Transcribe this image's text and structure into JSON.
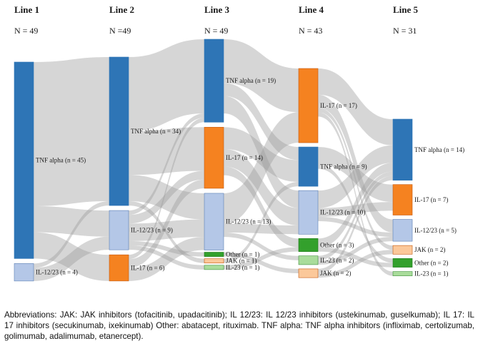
{
  "chart_data": {
    "type": "sankey",
    "columns": [
      {
        "label": "Line 1",
        "n_label": "N = 49",
        "total": 49
      },
      {
        "label": "Line 2",
        "n_label": "N =49",
        "total": 49
      },
      {
        "label": "Line 3",
        "n_label": "N = 49",
        "total": 49
      },
      {
        "label": "Line 4",
        "n_label": "N = 43",
        "total": 43
      },
      {
        "label": "Line 5",
        "n_label": "N = 31",
        "total": 31
      }
    ],
    "nodes": [
      {
        "id": "L1_TNF",
        "col": 0,
        "category": "TNF alpha",
        "value": 45,
        "label": "TNF alpha (n = 45)"
      },
      {
        "id": "L1_IL1223",
        "col": 0,
        "category": "IL-12/23",
        "value": 4,
        "label": "IL-12/23 (n = 4)"
      },
      {
        "id": "L2_TNF",
        "col": 1,
        "category": "TNF alpha",
        "value": 34,
        "label": "TNF alpha (n = 34)"
      },
      {
        "id": "L2_IL1223",
        "col": 1,
        "category": "IL-12/23",
        "value": 9,
        "label": "IL-12/23 (n = 9)"
      },
      {
        "id": "L2_IL17",
        "col": 1,
        "category": "IL-17",
        "value": 6,
        "label": "IL-17 (n = 6)"
      },
      {
        "id": "L3_TNF",
        "col": 2,
        "category": "TNF alpha",
        "value": 19,
        "label": "TNF alpha (n = 19)"
      },
      {
        "id": "L3_IL17",
        "col": 2,
        "category": "IL-17",
        "value": 14,
        "label": "IL-17 (n = 14)"
      },
      {
        "id": "L3_IL1223",
        "col": 2,
        "category": "IL-12/23",
        "value": 13,
        "label": "IL-12/23 (n = 13)"
      },
      {
        "id": "L3_Other",
        "col": 2,
        "category": "Other",
        "value": 1,
        "label": "Other (n = 1)"
      },
      {
        "id": "L3_JAK",
        "col": 2,
        "category": "JAK",
        "value": 1,
        "label": "JAK (n = 1)"
      },
      {
        "id": "L3_IL23",
        "col": 2,
        "category": "IL-23",
        "value": 1,
        "label": "IL-23 (n = 1)"
      },
      {
        "id": "L4_IL17",
        "col": 3,
        "category": "IL-17",
        "value": 17,
        "label": "IL-17 (n = 17)"
      },
      {
        "id": "L4_TNF",
        "col": 3,
        "category": "TNF alpha",
        "value": 9,
        "label": "TNF alpha (n = 9)"
      },
      {
        "id": "L4_IL1223",
        "col": 3,
        "category": "IL-12/23",
        "value": 10,
        "label": "IL-12/23 (n = 10)"
      },
      {
        "id": "L4_Other",
        "col": 3,
        "category": "Other",
        "value": 3,
        "label": "Other (n = 3)"
      },
      {
        "id": "L4_IL23",
        "col": 3,
        "category": "IL-23",
        "value": 2,
        "label": "IL-23 (n = 2)"
      },
      {
        "id": "L4_JAK",
        "col": 3,
        "category": "JAK",
        "value": 2,
        "label": "JAK (n = 2)"
      },
      {
        "id": "L5_TNF",
        "col": 4,
        "category": "TNF alpha",
        "value": 14,
        "label": "TNF alpha (n = 14)"
      },
      {
        "id": "L5_IL17",
        "col": 4,
        "category": "IL-17",
        "value": 7,
        "label": "IL-17 (n = 7)"
      },
      {
        "id": "L5_IL1223",
        "col": 4,
        "category": "IL-12/23",
        "value": 5,
        "label": "IL-12/23 (n = 5)"
      },
      {
        "id": "L5_JAK",
        "col": 4,
        "category": "JAK",
        "value": 2,
        "label": "JAK (n = 2)"
      },
      {
        "id": "L5_Other",
        "col": 4,
        "category": "Other",
        "value": 2,
        "label": "Other (n = 2)"
      },
      {
        "id": "L5_IL23",
        "col": 4,
        "category": "IL-23",
        "value": 1,
        "label": "IL-23 (n = 1)"
      }
    ],
    "links": [
      {
        "source": "L1_TNF",
        "target": "L2_TNF",
        "value": 33
      },
      {
        "source": "L1_TNF",
        "target": "L2_IL1223",
        "value": 6
      },
      {
        "source": "L1_TNF",
        "target": "L2_IL17",
        "value": 6
      },
      {
        "source": "L1_IL1223",
        "target": "L2_TNF",
        "value": 1
      },
      {
        "source": "L1_IL1223",
        "target": "L2_IL1223",
        "value": 3
      },
      {
        "source": "L2_TNF",
        "target": "L3_TNF",
        "value": 17
      },
      {
        "source": "L2_TNF",
        "target": "L3_IL17",
        "value": 10
      },
      {
        "source": "L2_TNF",
        "target": "L3_IL1223",
        "value": 6
      },
      {
        "source": "L2_TNF",
        "target": "L3_JAK",
        "value": 1
      },
      {
        "source": "L2_IL1223",
        "target": "L3_TNF",
        "value": 1
      },
      {
        "source": "L2_IL1223",
        "target": "L3_IL17",
        "value": 2
      },
      {
        "source": "L2_IL1223",
        "target": "L3_IL1223",
        "value": 4
      },
      {
        "source": "L2_IL1223",
        "target": "L3_Other",
        "value": 1
      },
      {
        "source": "L2_IL1223",
        "target": "L3_IL23",
        "value": 1
      },
      {
        "source": "L2_IL17",
        "target": "L3_TNF",
        "value": 1
      },
      {
        "source": "L2_IL17",
        "target": "L3_IL17",
        "value": 2
      },
      {
        "source": "L2_IL17",
        "target": "L3_IL1223",
        "value": 3
      },
      {
        "source": "L3_TNF",
        "target": "L4_IL17",
        "value": 10
      },
      {
        "source": "L3_TNF",
        "target": "L4_TNF",
        "value": 3
      },
      {
        "source": "L3_TNF",
        "target": "L4_IL1223",
        "value": 4
      },
      {
        "source": "L3_IL17",
        "target": "L4_TNF",
        "value": 5
      },
      {
        "source": "L3_IL17",
        "target": "L4_IL1223",
        "value": 4
      },
      {
        "source": "L3_IL17",
        "target": "L4_Other",
        "value": 2
      },
      {
        "source": "L3_IL1223",
        "target": "L4_IL17",
        "value": 7
      },
      {
        "source": "L3_IL1223",
        "target": "L4_IL1223",
        "value": 2
      },
      {
        "source": "L3_IL1223",
        "target": "L4_IL23",
        "value": 1
      },
      {
        "source": "L3_Other",
        "target": "L4_JAK",
        "value": 1
      },
      {
        "source": "L3_JAK",
        "target": "L4_TNF",
        "value": 1
      },
      {
        "source": "L3_IL23",
        "target": "L4_Other",
        "value": 1
      },
      {
        "source": "L4_IL17",
        "target": "L5_TNF",
        "value": 6
      },
      {
        "source": "L4_IL17",
        "target": "L5_IL1223",
        "value": 3
      },
      {
        "source": "L4_IL17",
        "target": "L5_JAK",
        "value": 1
      },
      {
        "source": "L4_IL17",
        "target": "L5_IL23",
        "value": 1
      },
      {
        "source": "L4_TNF",
        "target": "L5_IL17",
        "value": 4
      },
      {
        "source": "L4_TNF",
        "target": "L5_Other",
        "value": 1
      },
      {
        "source": "L4_IL1223",
        "target": "L5_TNF",
        "value": 4
      },
      {
        "source": "L4_IL1223",
        "target": "L5_IL17",
        "value": 2
      },
      {
        "source": "L4_IL1223",
        "target": "L5_IL1223",
        "value": 1
      },
      {
        "source": "L4_Other",
        "target": "L5_TNF",
        "value": 2
      },
      {
        "source": "L4_Other",
        "target": "L5_Other",
        "value": 1
      },
      {
        "source": "L4_IL23",
        "target": "L5_TNF",
        "value": 1
      },
      {
        "source": "L4_IL23",
        "target": "L5_IL1223",
        "value": 1
      },
      {
        "source": "L4_JAK",
        "target": "L5_TNF",
        "value": 1
      },
      {
        "source": "L4_JAK",
        "target": "L5_JAK",
        "value": 1
      }
    ],
    "colors": {
      "TNF alpha": {
        "fill": "#2e75b6",
        "stroke": "#2e75b6"
      },
      "IL-17": {
        "fill": "#f58220",
        "stroke": "#c55a11"
      },
      "IL-12/23": {
        "fill": "#b4c7e7",
        "stroke": "#5b7fb4"
      },
      "Other": {
        "fill": "#33a02c",
        "stroke": "#1f7a1a"
      },
      "JAK": {
        "fill": "#fbc89a",
        "stroke": "#c55a11"
      },
      "IL-23": {
        "fill": "#a9dc9b",
        "stroke": "#3f8f3a"
      }
    },
    "flow_color": "#9d9d9d"
  },
  "footnote": "Abbreviations: JAK: JAK inhibitors (tofacitinib, upadacitinib); IL 12/23: IL 12/23 inhibitors (ustekinumab, guselkumab); IL 17: IL 17 inhibitors (secukinumab, ixekinumab) Other: abatacept, rituximab. TNF alpha: TNF alpha inhibitors (infliximab, certolizumab, golimumab, adalimumab, etanercept)."
}
